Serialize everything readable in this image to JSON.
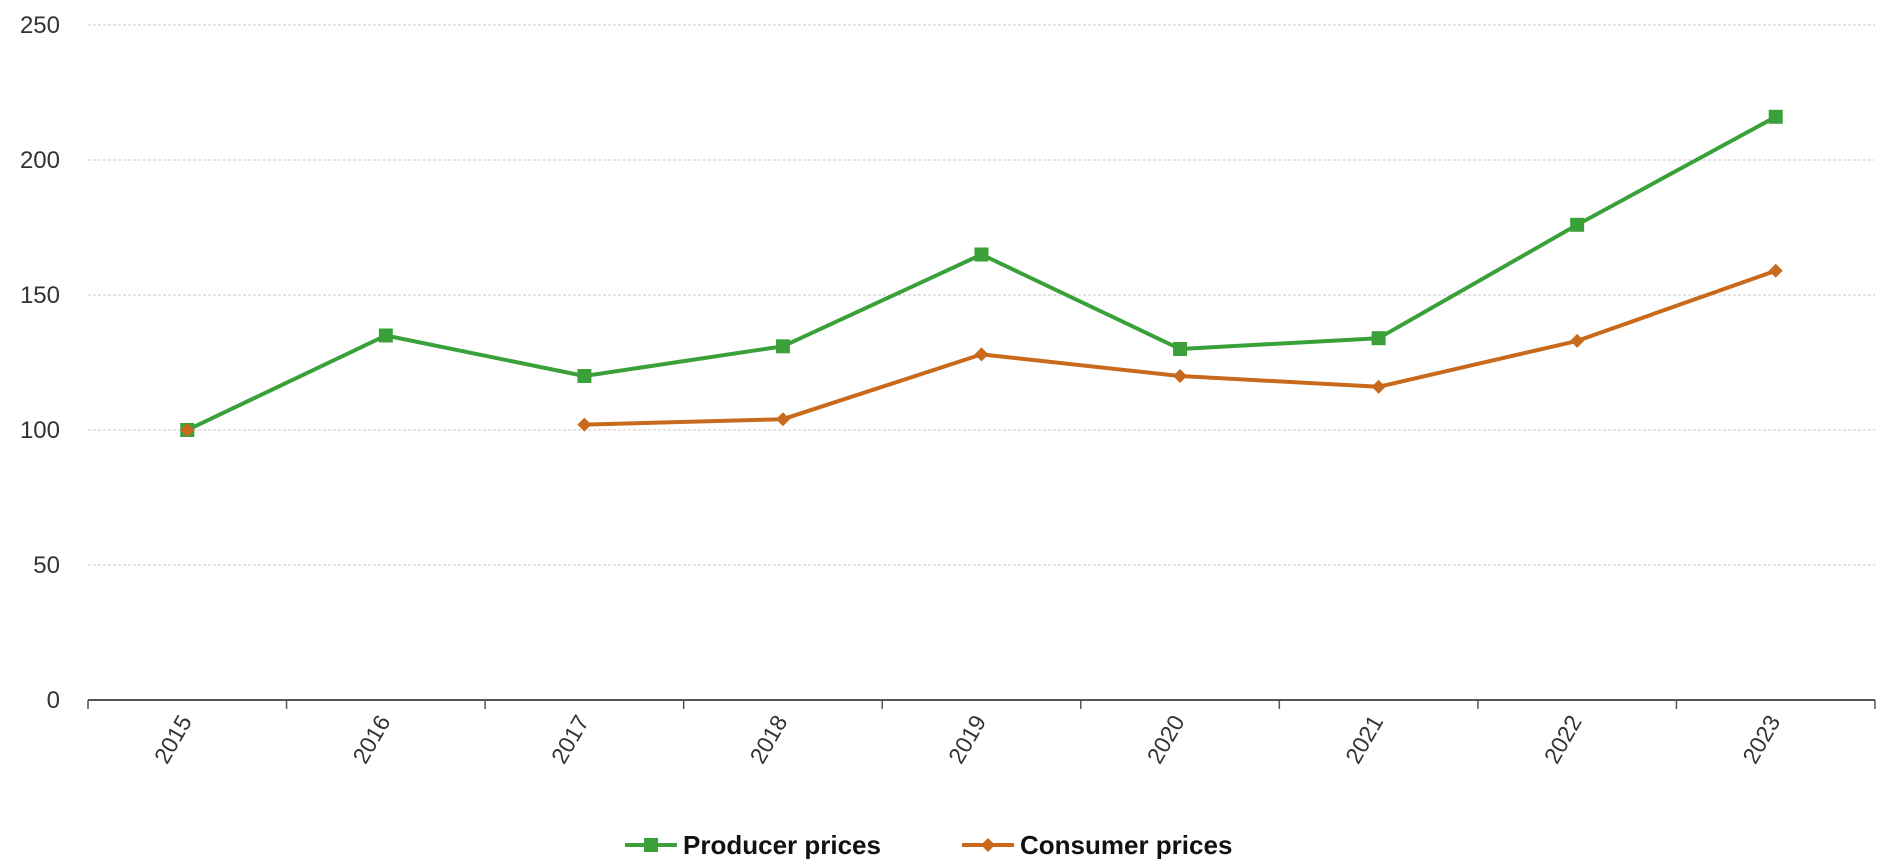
{
  "chart_data": {
    "type": "line",
    "categories": [
      "2015",
      "2016",
      "2017",
      "2018",
      "2019",
      "2020",
      "2021",
      "2022",
      "2023"
    ],
    "series": [
      {
        "name": "Producer prices",
        "color": "#3aa13a",
        "marker": "square",
        "values": [
          100,
          135,
          120,
          131,
          165,
          130,
          134,
          176,
          216
        ]
      },
      {
        "name": "Consumer prices",
        "color": "#c8691b",
        "marker": "diamond",
        "values": [
          100,
          null,
          102,
          104,
          128,
          120,
          116,
          133,
          159
        ]
      }
    ],
    "y_ticks": [
      "0",
      "50",
      "100",
      "150",
      "200",
      "250"
    ],
    "ylim": [
      0,
      250
    ],
    "grid": true,
    "legend_position": "bottom-center"
  }
}
